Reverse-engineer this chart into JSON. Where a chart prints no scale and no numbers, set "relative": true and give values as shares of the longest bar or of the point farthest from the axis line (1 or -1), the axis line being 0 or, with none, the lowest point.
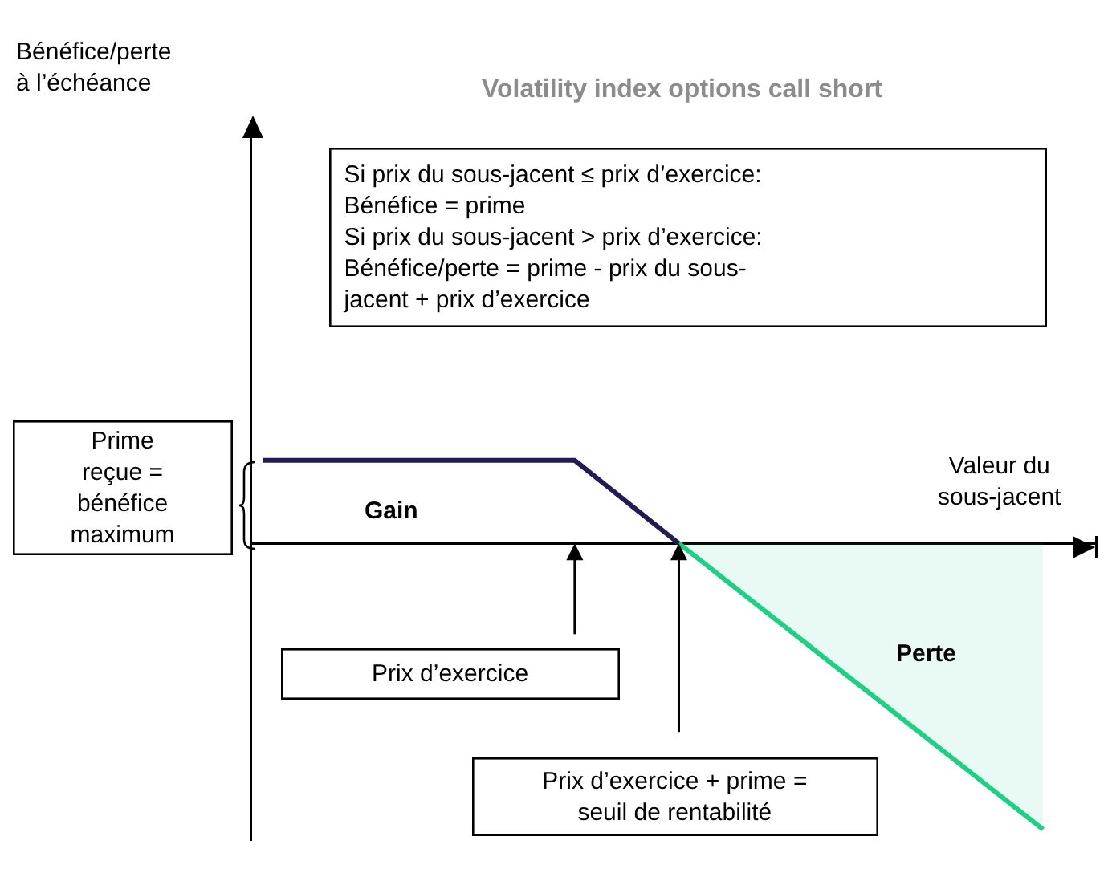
{
  "chart_data": {
    "type": "line",
    "title": "Volatility index options call short",
    "xlabel": "Valeur du\nsous-jacent",
    "relative": true,
    "marker": "none",
    "line_style": "solid",
    "categories": [
      null,
      null,
      null,
      null,
      null,
      null,
      null,
      null,
      null,
      null,
      null,
      null,
      null,
      null,
      null,
      null
    ],
    "series": [
      {
        "color": "#221c54",
        "values": [
          0.29,
          0.29,
          0.29,
          0.29,
          0.29,
          0.29,
          0.29,
          0.145,
          0,
          null,
          null,
          null,
          null,
          null,
          null,
          null
        ]
      },
      {
        "type": "area",
        "color": "#1fcf85",
        "values": [
          null,
          null,
          null,
          null,
          null,
          null,
          null,
          null,
          0,
          -0.143,
          -0.286,
          -0.429,
          -0.571,
          -0.714,
          -0.857,
          -1
        ]
      }
    ],
    "annotations": [
      "Si prix du sous-jacent ≤ prix d’exercice:\nBénéfice = prime\nSi prix du sous-jacent > prix d’exercice:\nBénéfice/perte = prime - prix du sous-\njacent + prix d’exercice",
      "Prime\nreçue =\nbénéfice\nmaximum",
      "Gain",
      "Perte",
      "Prix d’exercice",
      "Prix d’exercice + prime =\nseuil de rentabilité",
      "Bénéfice/perte\nà l’échéance"
    ]
  }
}
